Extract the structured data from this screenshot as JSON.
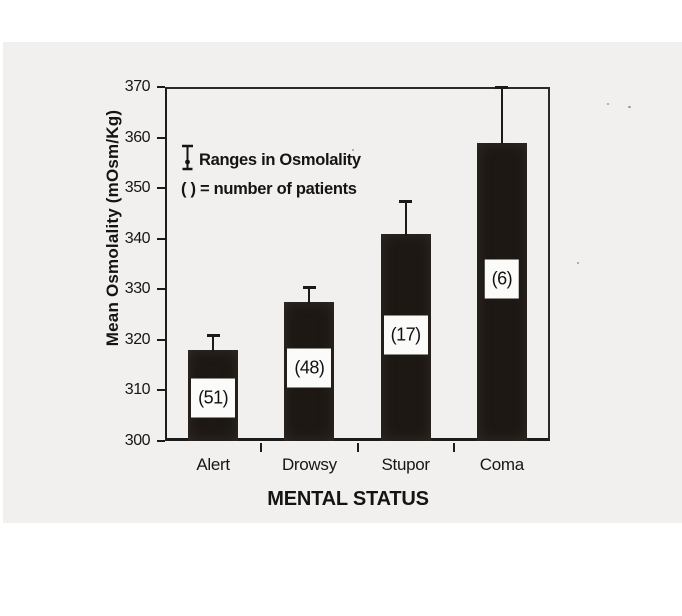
{
  "page": {
    "background": "#ffffff",
    "paper_color": "#f1f0ee"
  },
  "chart_data": {
    "type": "bar",
    "title": "",
    "xlabel": "MENTAL STATUS",
    "ylabel": "Mean Osmolality (mOsm/Kg)",
    "ylim": [
      300,
      370
    ],
    "yticks": [
      300,
      310,
      320,
      330,
      340,
      350,
      360,
      370
    ],
    "grid": false,
    "categories": [
      "Alert",
      "Drowsy",
      "Stupor",
      "Coma"
    ],
    "values": [
      318,
      327.5,
      341,
      359
    ],
    "upper_errors": [
      321,
      330.5,
      347.5,
      370
    ],
    "patient_counts": [
      51,
      48,
      17,
      6
    ],
    "count_labels": [
      "(51)",
      "(48)",
      "(17)",
      "(6)"
    ],
    "count_label_y": [
      308.5,
      314.5,
      321,
      332
    ],
    "bar_color": "#1d1814",
    "legend": {
      "position": "upper-left-inside",
      "line1": "Ranges in Osmolality",
      "line2": "( ) = number of patients"
    }
  }
}
